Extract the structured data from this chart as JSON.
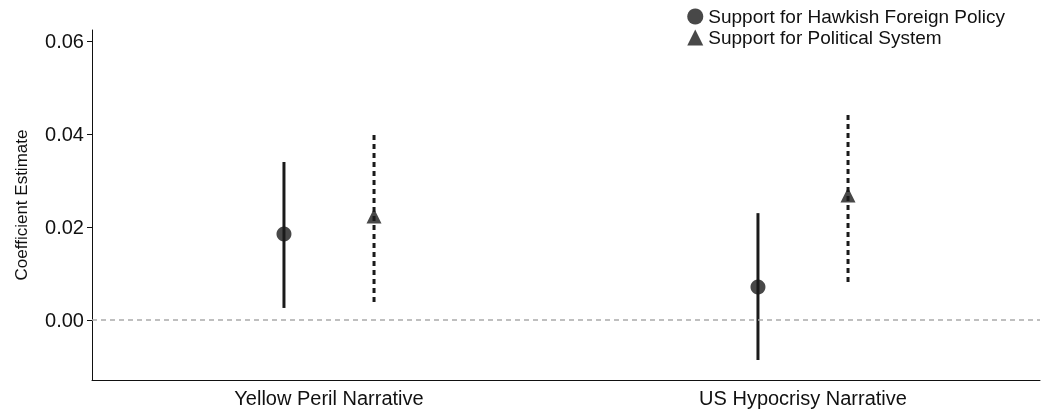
{
  "chart_data": {
    "type": "scatter",
    "ylabel": "Coefficient Estimate",
    "categories": [
      "Yellow Peril Narrative",
      "US Hypocrisy Narrative"
    ],
    "series": [
      {
        "name": "Support for Hawkish Foreign Policy",
        "color": "#1a1a1a",
        "marker": "circle",
        "line_style": "solid",
        "values": [
          0.0185,
          0.0071
        ],
        "errors": [
          [
            0.0026,
            0.034
          ],
          [
            -0.0086,
            0.023
          ]
        ]
      },
      {
        "name": "Support for Political System",
        "color": "#1a1a1a",
        "marker": "triangle",
        "line_style": "dashed",
        "values": [
          0.0224,
          0.0269
        ],
        "errors": [
          [
            0.0039,
            0.04
          ],
          [
            0.0082,
            0.0447
          ]
        ]
      }
    ],
    "ylim": [
      -0.0129,
      0.0624
    ],
    "yticks": [
      {
        "value": 0,
        "label": "0.00"
      },
      {
        "value": 0.02,
        "label": "0.02"
      },
      {
        "value": 0.04,
        "label": "0.04"
      },
      {
        "value": 0.06,
        "label": "0.06"
      }
    ],
    "ref_lines": [
      {
        "axis": "y",
        "value": 0,
        "color": "#aaaaaa",
        "line_style": "dashed"
      }
    ],
    "grid": false,
    "legend": "top right"
  }
}
